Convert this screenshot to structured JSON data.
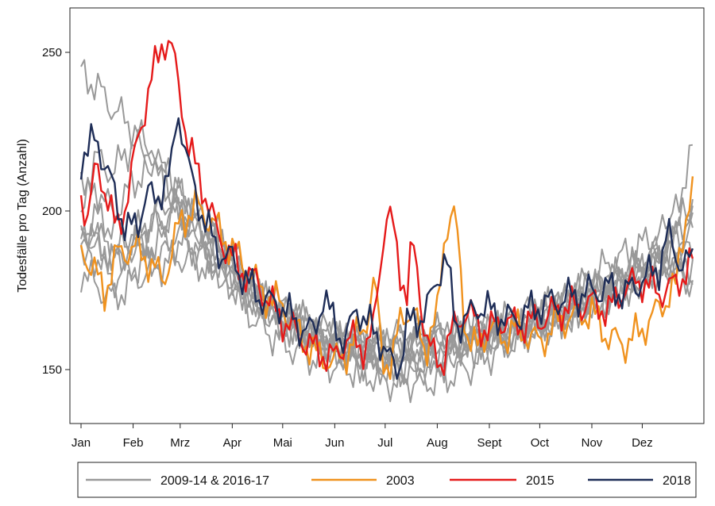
{
  "chart_data": {
    "type": "line",
    "title": "",
    "xlabel": "",
    "ylabel": "Todesfälle pro Tag (Anzahl)",
    "x_unit": "day of year",
    "xlim": [
      1,
      366
    ],
    "ylim": [
      138,
      262
    ],
    "yticks": [
      150,
      200,
      250
    ],
    "month_ticks": [
      {
        "label": "Jan",
        "day": 1
      },
      {
        "label": "Feb",
        "day": 32
      },
      {
        "label": "Mrz",
        "day": 60
      },
      {
        "label": "Apr",
        "day": 91
      },
      {
        "label": "Mai",
        "day": 121
      },
      {
        "label": "Jun",
        "day": 152
      },
      {
        "label": "Jul",
        "day": 182
      },
      {
        "label": "Aug",
        "day": 213
      },
      {
        "label": "Sept",
        "day": 244
      },
      {
        "label": "Oct",
        "day": 274
      },
      {
        "label": "Nov",
        "day": 305
      },
      {
        "label": "Dez",
        "day": 335
      }
    ],
    "grid": false,
    "legend_position": "bottom",
    "series": [
      {
        "name": "2009-14 & 2016-17",
        "color": "#999999",
        "group": true,
        "x": [
          1,
          10,
          20,
          32,
          45,
          60,
          75,
          91,
          105,
          121,
          135,
          152,
          165,
          182,
          195,
          213,
          230,
          244,
          260,
          274,
          290,
          305,
          320,
          335,
          350,
          366
        ],
        "lines": [
          [
            245,
            240,
            232,
            225,
            215,
            202,
            194,
            184,
            174,
            168,
            163,
            160,
            158,
            157,
            158,
            158,
            160,
            161,
            163,
            165,
            168,
            172,
            174,
            178,
            183,
            175
          ],
          [
            195,
            200,
            196,
            192,
            198,
            205,
            196,
            186,
            176,
            170,
            165,
            161,
            159,
            156,
            156,
            160,
            160,
            162,
            163,
            166,
            170,
            176,
            178,
            182,
            186,
            200
          ],
          [
            190,
            192,
            186,
            188,
            196,
            200,
            193,
            182,
            172,
            166,
            162,
            158,
            156,
            152,
            150,
            150,
            156,
            158,
            161,
            164,
            168,
            172,
            176,
            180,
            192,
            220
          ],
          [
            182,
            178,
            174,
            180,
            184,
            186,
            182,
            176,
            170,
            164,
            160,
            156,
            154,
            153,
            152,
            154,
            157,
            160,
            162,
            165,
            168,
            172,
            176,
            180,
            186,
            198
          ],
          [
            200,
            208,
            200,
            210,
            220,
            205,
            190,
            182,
            172,
            166,
            162,
            158,
            157,
            158,
            159,
            160,
            162,
            163,
            165,
            167,
            170,
            174,
            177,
            181,
            184,
            190
          ],
          [
            186,
            184,
            178,
            182,
            186,
            192,
            188,
            180,
            172,
            168,
            163,
            159,
            156,
            154,
            154,
            156,
            158,
            160,
            162,
            166,
            170,
            178,
            184,
            190,
            196,
            202
          ],
          [
            188,
            190,
            186,
            188,
            190,
            194,
            188,
            178,
            166,
            158,
            153,
            149,
            148,
            145,
            146,
            148,
            152,
            156,
            160,
            163,
            167,
            172,
            175,
            180,
            182,
            186
          ],
          [
            205,
            215,
            210,
            220,
            212,
            200,
            190,
            180,
            172,
            166,
            161,
            157,
            155,
            158,
            160,
            161,
            162,
            163,
            165,
            168,
            171,
            175,
            177,
            180,
            183,
            178
          ],
          [
            196,
            190,
            184,
            186,
            194,
            198,
            192,
            186,
            176,
            168,
            164,
            160,
            157,
            154,
            155,
            157,
            159,
            161,
            164,
            167,
            171,
            175,
            178,
            182,
            188,
            194
          ]
        ]
      },
      {
        "name": "2003",
        "color": "#f0921e",
        "x": [
          1,
          8,
          15,
          22,
          32,
          40,
          50,
          60,
          70,
          80,
          91,
          100,
          110,
          121,
          130,
          140,
          152,
          160,
          170,
          176,
          180,
          186,
          192,
          200,
          206,
          213,
          217,
          220,
          224,
          230,
          236,
          244,
          252,
          260,
          274,
          285,
          295,
          305,
          315,
          325,
          335,
          345,
          355,
          360,
          366
        ],
        "x_note": "",
        "values": [
          190,
          184,
          176,
          188,
          190,
          186,
          178,
          196,
          200,
          194,
          186,
          180,
          172,
          170,
          162,
          156,
          154,
          158,
          166,
          180,
          156,
          152,
          170,
          166,
          156,
          166,
          190,
          197,
          196,
          160,
          154,
          162,
          158,
          162,
          158,
          166,
          168,
          170,
          162,
          160,
          164,
          170,
          176,
          196,
          208
        ]
      },
      {
        "name": "2015",
        "color": "#e51a1a",
        "x": [
          1,
          5,
          10,
          16,
          22,
          28,
          35,
          40,
          44,
          50,
          55,
          60,
          65,
          72,
          80,
          88,
          95,
          105,
          115,
          121,
          130,
          140,
          152,
          160,
          168,
          175,
          180,
          183,
          187,
          190,
          195,
          198,
          202,
          205,
          210,
          215,
          220,
          225,
          230,
          237,
          244,
          250,
          260,
          274,
          285,
          295,
          305,
          315,
          325,
          335,
          345,
          355,
          366
        ],
        "values": [
          205,
          200,
          215,
          208,
          195,
          205,
          225,
          237,
          245,
          256,
          252,
          238,
          220,
          210,
          195,
          186,
          180,
          176,
          168,
          164,
          160,
          156,
          154,
          162,
          158,
          164,
          190,
          202,
          196,
          184,
          176,
          192,
          178,
          166,
          155,
          152,
          160,
          164,
          168,
          163,
          160,
          164,
          162,
          164,
          168,
          170,
          172,
          170,
          178,
          180,
          176,
          178,
          185
        ]
      },
      {
        "name": "2018",
        "color": "#1e2d57",
        "x": [
          1,
          5,
          10,
          15,
          20,
          28,
          35,
          40,
          45,
          50,
          55,
          58,
          61,
          65,
          70,
          76,
          82,
          91,
          100,
          110,
          121,
          130,
          140,
          145,
          150,
          158,
          165,
          172,
          178,
          185,
          190,
          195,
          202,
          208,
          214,
          218,
          224,
          230,
          237,
          244,
          255,
          265,
          274,
          285,
          295,
          305,
          315,
          325,
          335,
          345,
          350,
          355,
          360,
          366
        ],
        "values": [
          216,
          218,
          224,
          215,
          208,
          195,
          198,
          208,
          205,
          210,
          215,
          234,
          228,
          215,
          205,
          196,
          188,
          184,
          176,
          170,
          168,
          162,
          160,
          172,
          166,
          158,
          170,
          165,
          162,
          154,
          152,
          166,
          168,
          172,
          182,
          188,
          165,
          166,
          170,
          168,
          164,
          166,
          168,
          170,
          172,
          174,
          176,
          175,
          180,
          184,
          195,
          188,
          185,
          186
        ]
      }
    ]
  }
}
